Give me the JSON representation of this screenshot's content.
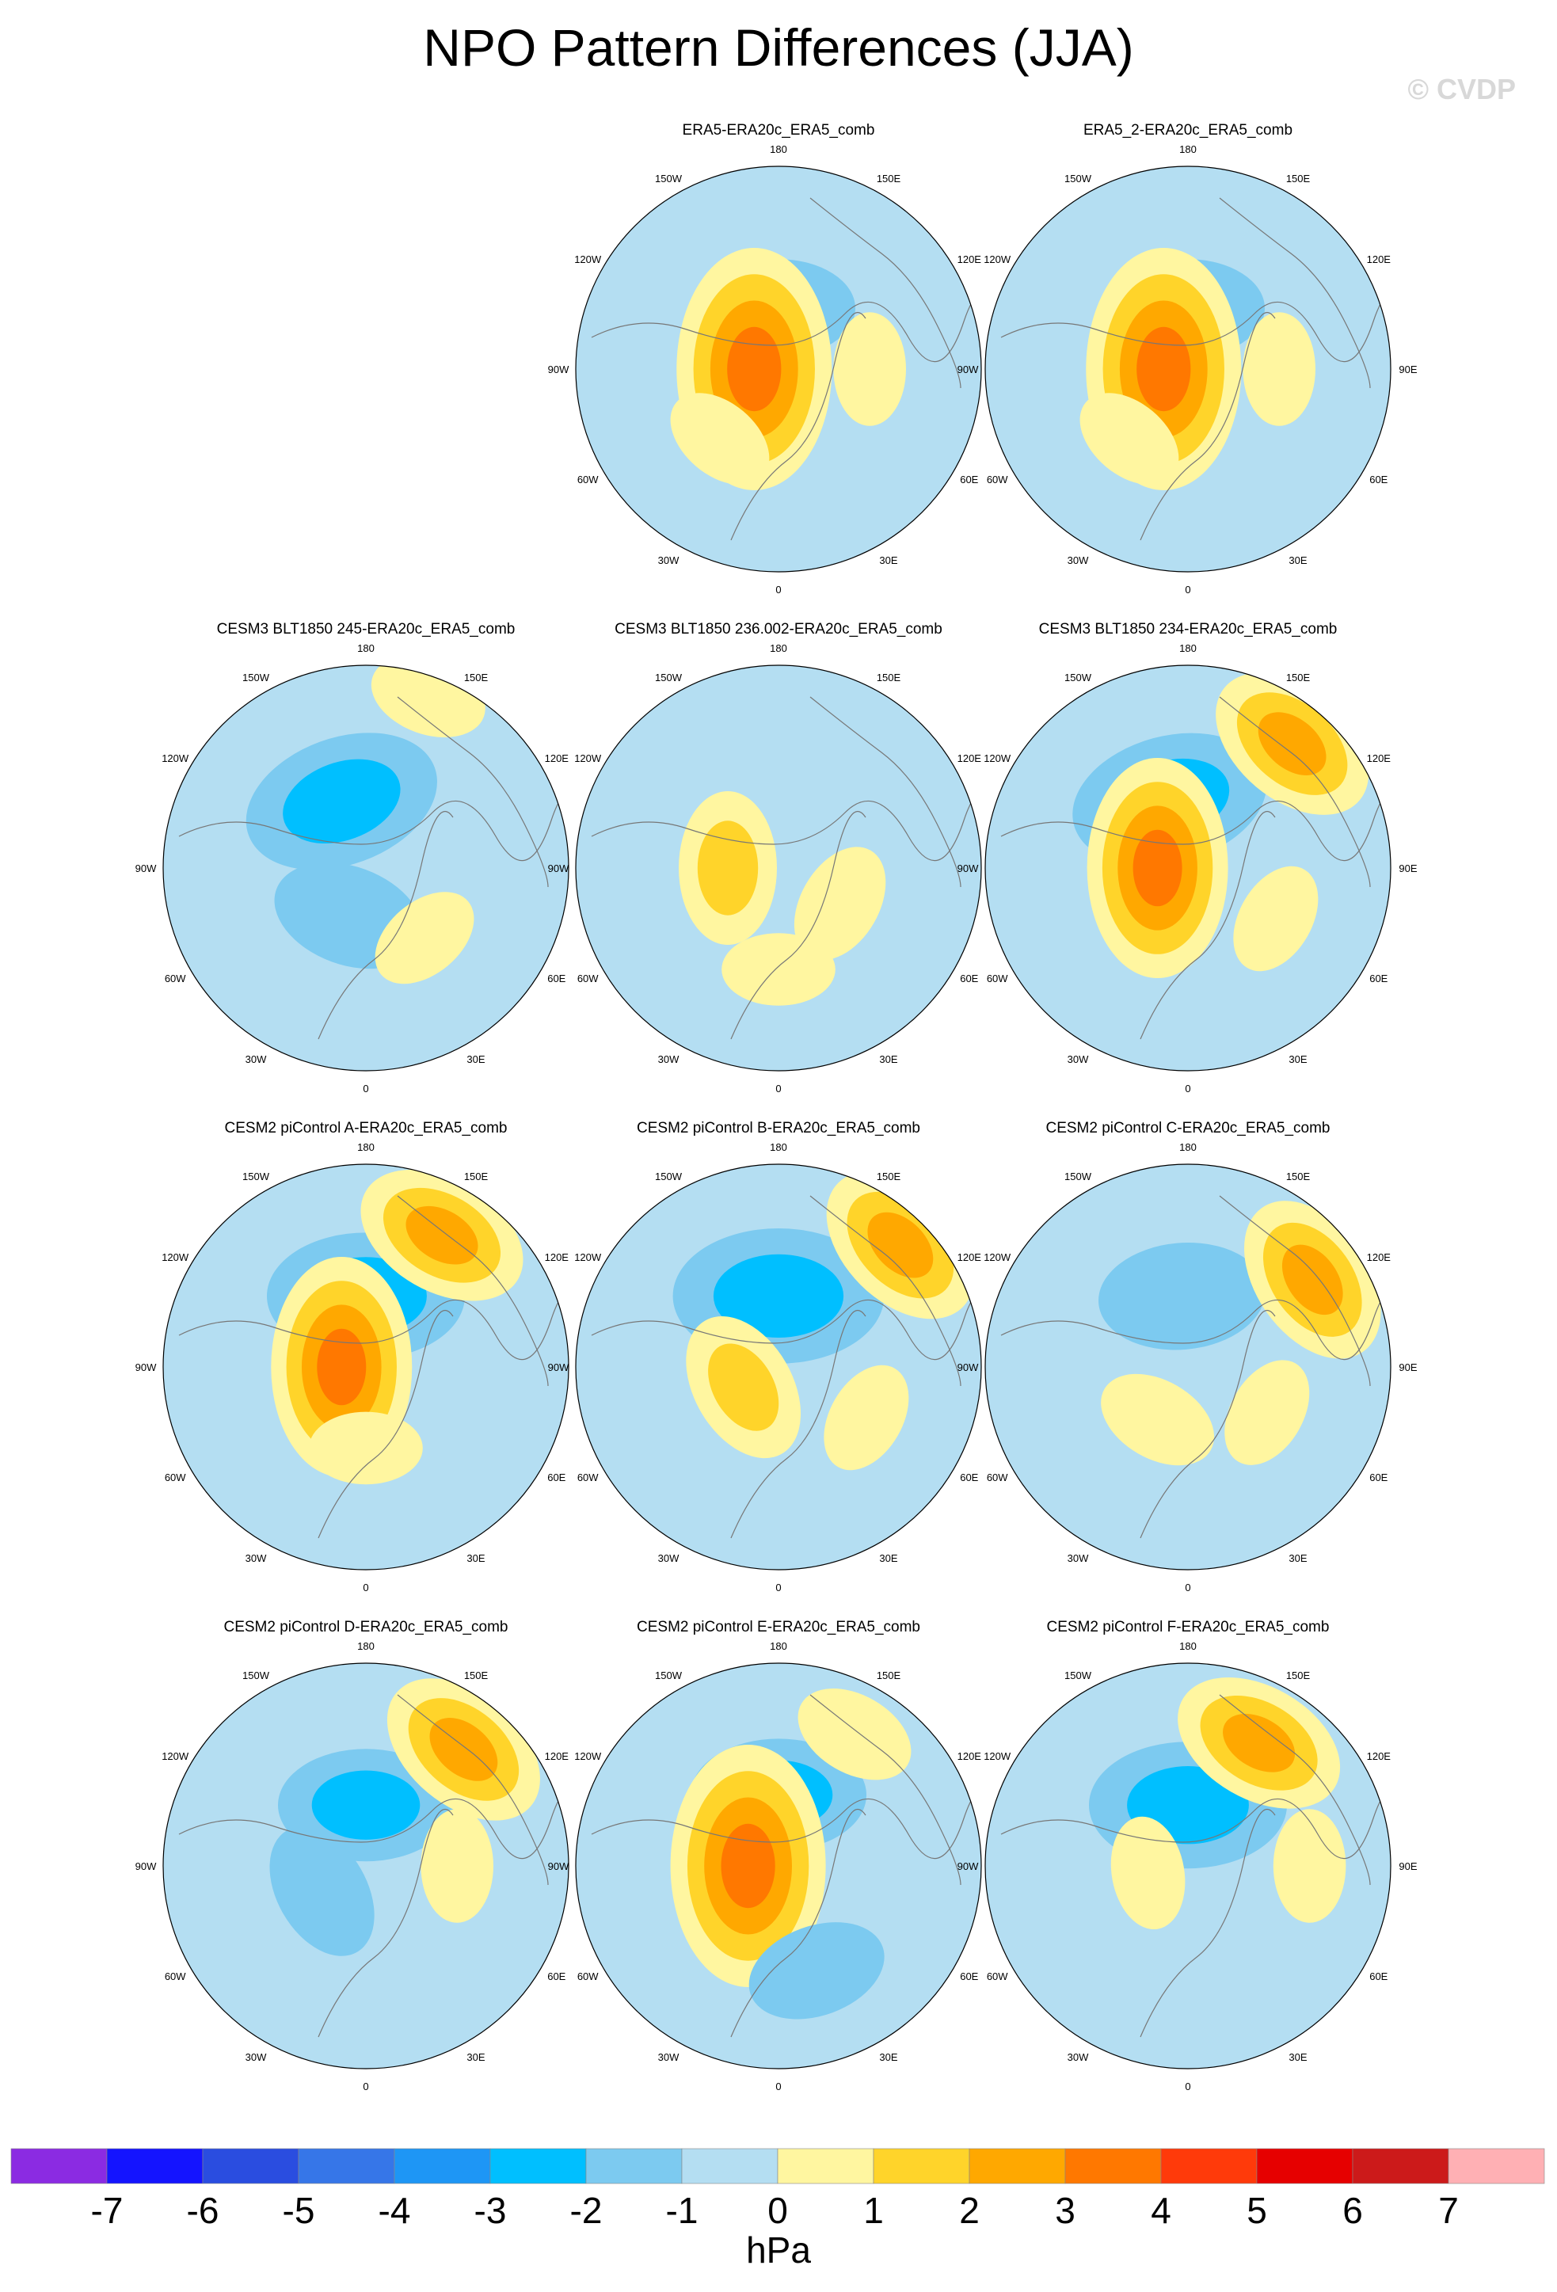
{
  "title": "NPO Pattern Differences (JJA)",
  "watermark": "© CVDP",
  "chart_data": {
    "type": "contour-map",
    "projection": "north-polar-stereographic",
    "units": "hPa",
    "colorbar": {
      "levels": [
        "-7",
        "-6",
        "-5",
        "-4",
        "-3",
        "-2",
        "-1",
        "0",
        "1",
        "2",
        "3",
        "4",
        "5",
        "6",
        "7"
      ],
      "colors": [
        "#8b2be2",
        "#1414ff",
        "#2a4de0",
        "#3676e8",
        "#1e96f5",
        "#00bfff",
        "#7ccaf0",
        "#b4def2",
        "#fff6a0",
        "#ffd42a",
        "#ffa800",
        "#ff7800",
        "#ff3a0a",
        "#e60000",
        "#cc1a1a",
        "#ffb0b4"
      ]
    },
    "lon_labels": [
      "180",
      "150E",
      "120E",
      "90E",
      "60E",
      "30E",
      "0",
      "30W",
      "60W",
      "90W",
      "120W",
      "150W"
    ],
    "panels": [
      {
        "title": "",
        "blank": true
      },
      {
        "title": "ERA5-ERA20c_ERA5_comb",
        "min": -2,
        "max": 4,
        "pattern": [
          {
            "lon": 180,
            "r": 0.3,
            "v": -1.5
          },
          {
            "lon": 270,
            "r": 0.12,
            "v": 3.5
          },
          {
            "lon": 90,
            "r": 0.45,
            "v": 0.6
          },
          {
            "lon": 320,
            "r": 0.45,
            "v": 0.6
          }
        ]
      },
      {
        "title": "ERA5_2-ERA20c_ERA5_comb",
        "min": -2,
        "max": 4,
        "pattern": [
          {
            "lon": 180,
            "r": 0.3,
            "v": -1.5
          },
          {
            "lon": 270,
            "r": 0.12,
            "v": 3.5
          },
          {
            "lon": 90,
            "r": 0.45,
            "v": 0.6
          },
          {
            "lon": 320,
            "r": 0.45,
            "v": 0.6
          }
        ]
      },
      {
        "title": "CESM3 BLT1850 245-ERA20c_ERA5_comb",
        "min": -3,
        "max": 1,
        "pattern": [
          {
            "lon": 200,
            "r": 0.35,
            "v": -2.5
          },
          {
            "lon": 340,
            "r": 0.25,
            "v": -1.5
          },
          {
            "lon": 40,
            "r": 0.45,
            "v": 0.6
          },
          {
            "lon": 160,
            "r": 0.9,
            "v": 0.7
          }
        ]
      },
      {
        "title": "CESM3 BLT1850 236.002-ERA20c_ERA5_comb",
        "min": -1,
        "max": 2,
        "pattern": [
          {
            "lon": 270,
            "r": 0.25,
            "v": 1.5
          },
          {
            "lon": 60,
            "r": 0.35,
            "v": 0.8
          },
          {
            "lon": 0,
            "r": 0.5,
            "v": 0.6
          }
        ]
      },
      {
        "title": "CESM3 BLT1850 234-ERA20c_ERA5_comb",
        "min": -3,
        "max": 3,
        "pattern": [
          {
            "lon": 195,
            "r": 0.35,
            "v": -2.5
          },
          {
            "lon": 270,
            "r": 0.15,
            "v": 3
          },
          {
            "lon": 140,
            "r": 0.8,
            "v": 2
          },
          {
            "lon": 60,
            "r": 0.5,
            "v": 0.6
          }
        ]
      },
      {
        "title": "CESM2 piControl A-ERA20c_ERA5_comb",
        "min": -3,
        "max": 3,
        "pattern": [
          {
            "lon": 180,
            "r": 0.35,
            "v": -2.5
          },
          {
            "lon": 270,
            "r": 0.12,
            "v": 3
          },
          {
            "lon": 150,
            "r": 0.75,
            "v": 2
          },
          {
            "lon": 0,
            "r": 0.4,
            "v": 0.6
          }
        ]
      },
      {
        "title": "CESM2 piControl B-ERA20c_ERA5_comb",
        "min": -3,
        "max": 2,
        "pattern": [
          {
            "lon": 180,
            "r": 0.35,
            "v": -2.8
          },
          {
            "lon": 300,
            "r": 0.2,
            "v": 1.5
          },
          {
            "lon": 135,
            "r": 0.85,
            "v": 2
          },
          {
            "lon": 60,
            "r": 0.5,
            "v": 0.6
          }
        ]
      },
      {
        "title": "CESM2 piControl C-ERA20c_ERA5_comb",
        "min": -2,
        "max": 2,
        "pattern": [
          {
            "lon": 185,
            "r": 0.35,
            "v": -1.8
          },
          {
            "lon": 330,
            "r": 0.3,
            "v": 0.8
          },
          {
            "lon": 125,
            "r": 0.75,
            "v": 2
          },
          {
            "lon": 60,
            "r": 0.45,
            "v": 0.6
          }
        ]
      },
      {
        "title": "CESM2 piControl D-ERA20c_ERA5_comb",
        "min": -2,
        "max": 2,
        "pattern": [
          {
            "lon": 180,
            "r": 0.3,
            "v": -2
          },
          {
            "lon": 300,
            "r": 0.25,
            "v": -1.2
          },
          {
            "lon": 140,
            "r": 0.75,
            "v": 2
          },
          {
            "lon": 90,
            "r": 0.45,
            "v": 0.6
          }
        ]
      },
      {
        "title": "CESM2 piControl E-ERA20c_ERA5_comb",
        "min": -2,
        "max": 4,
        "pattern": [
          {
            "lon": 180,
            "r": 0.35,
            "v": -2
          },
          {
            "lon": 270,
            "r": 0.15,
            "v": 3.5
          },
          {
            "lon": 20,
            "r": 0.55,
            "v": -1.2
          },
          {
            "lon": 150,
            "r": 0.75,
            "v": 0.8
          }
        ]
      },
      {
        "title": "CESM2 piControl F-ERA20c_ERA5_comb",
        "min": -3,
        "max": 2,
        "pattern": [
          {
            "lon": 180,
            "r": 0.3,
            "v": -2.5
          },
          {
            "lon": 150,
            "r": 0.7,
            "v": 2
          },
          {
            "lon": 280,
            "r": 0.2,
            "v": 0.6
          },
          {
            "lon": 90,
            "r": 0.6,
            "v": 0.6
          }
        ]
      }
    ]
  }
}
